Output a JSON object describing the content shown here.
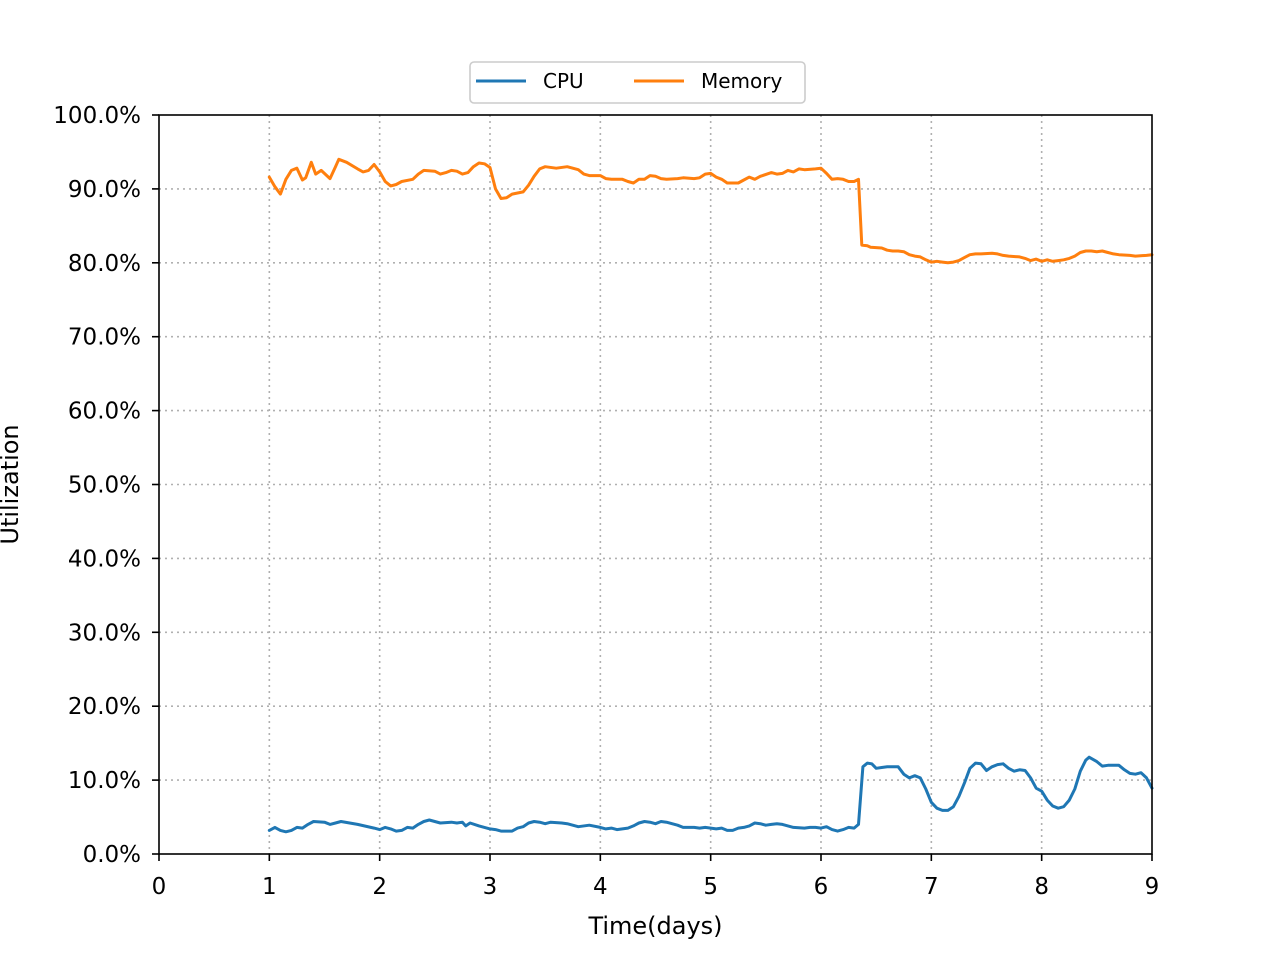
{
  "chart_data": {
    "type": "line",
    "title": "",
    "xlabel": "Time(days)",
    "ylabel": "Utilization",
    "xlim": [
      0,
      9
    ],
    "ylim": [
      0,
      100
    ],
    "x_ticks": [
      0,
      1,
      2,
      3,
      4,
      5,
      6,
      7,
      8,
      9
    ],
    "x_tick_labels": [
      "0",
      "1",
      "2",
      "3",
      "4",
      "5",
      "6",
      "7",
      "8",
      "9"
    ],
    "y_ticks": [
      0,
      10,
      20,
      30,
      40,
      50,
      60,
      70,
      80,
      90,
      100
    ],
    "y_tick_labels": [
      "0.0%",
      "10.0%",
      "20.0%",
      "30.0%",
      "40.0%",
      "50.0%",
      "60.0%",
      "70.0%",
      "80.0%",
      "90.0%",
      "100.0%"
    ],
    "grid": true,
    "legend_position": "top-center",
    "series": [
      {
        "name": "CPU",
        "color": "#1f77b4",
        "points": [
          [
            1.0,
            3.2
          ],
          [
            1.05,
            3.6
          ],
          [
            1.1,
            3.2
          ],
          [
            1.15,
            3.0
          ],
          [
            1.2,
            3.2
          ],
          [
            1.25,
            3.6
          ],
          [
            1.3,
            3.5
          ],
          [
            1.35,
            4.0
          ],
          [
            1.4,
            4.4
          ],
          [
            1.5,
            4.3
          ],
          [
            1.55,
            4.0
          ],
          [
            1.6,
            4.2
          ],
          [
            1.65,
            4.4
          ],
          [
            1.8,
            4.0
          ],
          [
            1.95,
            3.5
          ],
          [
            2.0,
            3.3
          ],
          [
            2.05,
            3.6
          ],
          [
            2.1,
            3.4
          ],
          [
            2.15,
            3.1
          ],
          [
            2.2,
            3.2
          ],
          [
            2.25,
            3.6
          ],
          [
            2.3,
            3.5
          ],
          [
            2.35,
            4.0
          ],
          [
            2.4,
            4.4
          ],
          [
            2.45,
            4.6
          ],
          [
            2.5,
            4.4
          ],
          [
            2.55,
            4.2
          ],
          [
            2.65,
            4.3
          ],
          [
            2.7,
            4.2
          ],
          [
            2.75,
            4.3
          ],
          [
            2.78,
            3.8
          ],
          [
            2.82,
            4.2
          ],
          [
            2.9,
            3.8
          ],
          [
            3.0,
            3.4
          ],
          [
            3.05,
            3.3
          ],
          [
            3.1,
            3.1
          ],
          [
            3.2,
            3.1
          ],
          [
            3.25,
            3.5
          ],
          [
            3.3,
            3.7
          ],
          [
            3.35,
            4.2
          ],
          [
            3.4,
            4.4
          ],
          [
            3.45,
            4.3
          ],
          [
            3.5,
            4.1
          ],
          [
            3.55,
            4.3
          ],
          [
            3.65,
            4.2
          ],
          [
            3.7,
            4.1
          ],
          [
            3.8,
            3.7
          ],
          [
            3.9,
            3.9
          ],
          [
            4.0,
            3.6
          ],
          [
            4.05,
            3.4
          ],
          [
            4.1,
            3.5
          ],
          [
            4.15,
            3.3
          ],
          [
            4.25,
            3.5
          ],
          [
            4.3,
            3.8
          ],
          [
            4.35,
            4.2
          ],
          [
            4.4,
            4.4
          ],
          [
            4.45,
            4.3
          ],
          [
            4.5,
            4.1
          ],
          [
            4.55,
            4.4
          ],
          [
            4.6,
            4.3
          ],
          [
            4.7,
            3.9
          ],
          [
            4.75,
            3.6
          ],
          [
            4.85,
            3.6
          ],
          [
            4.9,
            3.5
          ],
          [
            4.95,
            3.6
          ],
          [
            5.0,
            3.5
          ],
          [
            5.05,
            3.4
          ],
          [
            5.1,
            3.5
          ],
          [
            5.15,
            3.2
          ],
          [
            5.2,
            3.2
          ],
          [
            5.25,
            3.5
          ],
          [
            5.3,
            3.6
          ],
          [
            5.35,
            3.8
          ],
          [
            5.4,
            4.2
          ],
          [
            5.45,
            4.1
          ],
          [
            5.5,
            3.9
          ],
          [
            5.55,
            4.0
          ],
          [
            5.6,
            4.1
          ],
          [
            5.65,
            4.0
          ],
          [
            5.75,
            3.6
          ],
          [
            5.85,
            3.5
          ],
          [
            5.9,
            3.6
          ],
          [
            5.95,
            3.6
          ],
          [
            6.0,
            3.5
          ],
          [
            6.05,
            3.7
          ],
          [
            6.1,
            3.3
          ],
          [
            6.15,
            3.1
          ],
          [
            6.2,
            3.3
          ],
          [
            6.25,
            3.6
          ],
          [
            6.3,
            3.5
          ],
          [
            6.34,
            4.0
          ],
          [
            6.38,
            11.8
          ],
          [
            6.42,
            12.3
          ],
          [
            6.46,
            12.2
          ],
          [
            6.5,
            11.6
          ],
          [
            6.55,
            11.7
          ],
          [
            6.6,
            11.8
          ],
          [
            6.7,
            11.8
          ],
          [
            6.75,
            10.8
          ],
          [
            6.8,
            10.3
          ],
          [
            6.85,
            10.6
          ],
          [
            6.9,
            10.3
          ],
          [
            6.95,
            8.8
          ],
          [
            7.0,
            7.0
          ],
          [
            7.05,
            6.2
          ],
          [
            7.1,
            5.9
          ],
          [
            7.15,
            5.9
          ],
          [
            7.2,
            6.4
          ],
          [
            7.25,
            7.8
          ],
          [
            7.3,
            9.6
          ],
          [
            7.35,
            11.6
          ],
          [
            7.4,
            12.3
          ],
          [
            7.45,
            12.2
          ],
          [
            7.5,
            11.3
          ],
          [
            7.55,
            11.8
          ],
          [
            7.6,
            12.1
          ],
          [
            7.65,
            12.2
          ],
          [
            7.7,
            11.6
          ],
          [
            7.75,
            11.2
          ],
          [
            7.8,
            11.4
          ],
          [
            7.85,
            11.3
          ],
          [
            7.9,
            10.3
          ],
          [
            7.95,
            8.9
          ],
          [
            8.0,
            8.5
          ],
          [
            8.05,
            7.3
          ],
          [
            8.1,
            6.5
          ],
          [
            8.15,
            6.2
          ],
          [
            8.2,
            6.4
          ],
          [
            8.25,
            7.3
          ],
          [
            8.3,
            8.8
          ],
          [
            8.35,
            11.2
          ],
          [
            8.4,
            12.7
          ],
          [
            8.43,
            13.1
          ],
          [
            8.5,
            12.5
          ],
          [
            8.55,
            11.9
          ],
          [
            8.6,
            12.0
          ],
          [
            8.7,
            12.0
          ],
          [
            8.75,
            11.4
          ],
          [
            8.8,
            10.9
          ],
          [
            8.85,
            10.8
          ],
          [
            8.9,
            11.0
          ],
          [
            8.95,
            10.3
          ],
          [
            9.0,
            8.9
          ]
        ]
      },
      {
        "name": "Memory",
        "color": "#ff7f0e",
        "points": [
          [
            1.0,
            91.6
          ],
          [
            1.05,
            90.3
          ],
          [
            1.1,
            89.3
          ],
          [
            1.15,
            91.3
          ],
          [
            1.2,
            92.5
          ],
          [
            1.25,
            92.8
          ],
          [
            1.3,
            91.2
          ],
          [
            1.33,
            91.5
          ],
          [
            1.38,
            93.6
          ],
          [
            1.42,
            92.0
          ],
          [
            1.47,
            92.5
          ],
          [
            1.55,
            91.4
          ],
          [
            1.6,
            93.0
          ],
          [
            1.63,
            94.0
          ],
          [
            1.7,
            93.6
          ],
          [
            1.8,
            92.7
          ],
          [
            1.85,
            92.3
          ],
          [
            1.9,
            92.5
          ],
          [
            1.95,
            93.3
          ],
          [
            2.0,
            92.3
          ],
          [
            2.05,
            91.0
          ],
          [
            2.1,
            90.4
          ],
          [
            2.15,
            90.6
          ],
          [
            2.2,
            91.0
          ],
          [
            2.3,
            91.3
          ],
          [
            2.35,
            92.0
          ],
          [
            2.4,
            92.5
          ],
          [
            2.5,
            92.4
          ],
          [
            2.55,
            92.0
          ],
          [
            2.6,
            92.2
          ],
          [
            2.65,
            92.5
          ],
          [
            2.7,
            92.4
          ],
          [
            2.75,
            92.0
          ],
          [
            2.8,
            92.2
          ],
          [
            2.85,
            93.0
          ],
          [
            2.9,
            93.5
          ],
          [
            2.95,
            93.4
          ],
          [
            3.0,
            92.9
          ],
          [
            3.05,
            90.0
          ],
          [
            3.1,
            88.7
          ],
          [
            3.15,
            88.8
          ],
          [
            3.2,
            89.3
          ],
          [
            3.3,
            89.6
          ],
          [
            3.35,
            90.5
          ],
          [
            3.4,
            91.7
          ],
          [
            3.45,
            92.7
          ],
          [
            3.5,
            93.0
          ],
          [
            3.6,
            92.8
          ],
          [
            3.7,
            93.0
          ],
          [
            3.75,
            92.8
          ],
          [
            3.8,
            92.6
          ],
          [
            3.85,
            92.0
          ],
          [
            3.9,
            91.8
          ],
          [
            3.95,
            91.8
          ],
          [
            4.0,
            91.8
          ],
          [
            4.05,
            91.4
          ],
          [
            4.1,
            91.3
          ],
          [
            4.2,
            91.3
          ],
          [
            4.25,
            91.0
          ],
          [
            4.3,
            90.8
          ],
          [
            4.35,
            91.3
          ],
          [
            4.4,
            91.3
          ],
          [
            4.45,
            91.8
          ],
          [
            4.5,
            91.7
          ],
          [
            4.55,
            91.4
          ],
          [
            4.6,
            91.3
          ],
          [
            4.7,
            91.4
          ],
          [
            4.75,
            91.5
          ],
          [
            4.85,
            91.4
          ],
          [
            4.9,
            91.5
          ],
          [
            4.95,
            92.0
          ],
          [
            5.0,
            92.1
          ],
          [
            5.05,
            91.6
          ],
          [
            5.1,
            91.3
          ],
          [
            5.15,
            90.8
          ],
          [
            5.25,
            90.8
          ],
          [
            5.3,
            91.2
          ],
          [
            5.35,
            91.6
          ],
          [
            5.4,
            91.3
          ],
          [
            5.45,
            91.7
          ],
          [
            5.55,
            92.2
          ],
          [
            5.6,
            92.0
          ],
          [
            5.65,
            92.1
          ],
          [
            5.7,
            92.5
          ],
          [
            5.75,
            92.3
          ],
          [
            5.8,
            92.7
          ],
          [
            5.85,
            92.6
          ],
          [
            5.95,
            92.7
          ],
          [
            6.0,
            92.8
          ],
          [
            6.05,
            92.1
          ],
          [
            6.1,
            91.3
          ],
          [
            6.15,
            91.4
          ],
          [
            6.2,
            91.3
          ],
          [
            6.25,
            91.0
          ],
          [
            6.3,
            91.0
          ],
          [
            6.34,
            91.3
          ],
          [
            6.37,
            82.4
          ],
          [
            6.42,
            82.3
          ],
          [
            6.45,
            82.1
          ],
          [
            6.55,
            82.0
          ],
          [
            6.6,
            81.7
          ],
          [
            6.65,
            81.6
          ],
          [
            6.7,
            81.6
          ],
          [
            6.75,
            81.5
          ],
          [
            6.8,
            81.1
          ],
          [
            6.85,
            80.9
          ],
          [
            6.9,
            80.8
          ],
          [
            6.95,
            80.4
          ],
          [
            7.0,
            80.1
          ],
          [
            7.05,
            80.2
          ],
          [
            7.1,
            80.1
          ],
          [
            7.15,
            80.0
          ],
          [
            7.2,
            80.1
          ],
          [
            7.25,
            80.3
          ],
          [
            7.3,
            80.7
          ],
          [
            7.35,
            81.1
          ],
          [
            7.4,
            81.2
          ],
          [
            7.45,
            81.2
          ],
          [
            7.55,
            81.3
          ],
          [
            7.6,
            81.2
          ],
          [
            7.65,
            81.0
          ],
          [
            7.7,
            80.9
          ],
          [
            7.8,
            80.8
          ],
          [
            7.85,
            80.6
          ],
          [
            7.9,
            80.3
          ],
          [
            7.95,
            80.5
          ],
          [
            8.0,
            80.2
          ],
          [
            8.05,
            80.4
          ],
          [
            8.1,
            80.2
          ],
          [
            8.15,
            80.3
          ],
          [
            8.2,
            80.4
          ],
          [
            8.25,
            80.6
          ],
          [
            8.3,
            80.9
          ],
          [
            8.35,
            81.4
          ],
          [
            8.4,
            81.6
          ],
          [
            8.45,
            81.6
          ],
          [
            8.5,
            81.5
          ],
          [
            8.55,
            81.6
          ],
          [
            8.6,
            81.4
          ],
          [
            8.65,
            81.2
          ],
          [
            8.7,
            81.1
          ],
          [
            8.8,
            81.0
          ],
          [
            8.85,
            80.9
          ],
          [
            8.95,
            81.0
          ],
          [
            9.0,
            81.1
          ]
        ]
      }
    ]
  }
}
